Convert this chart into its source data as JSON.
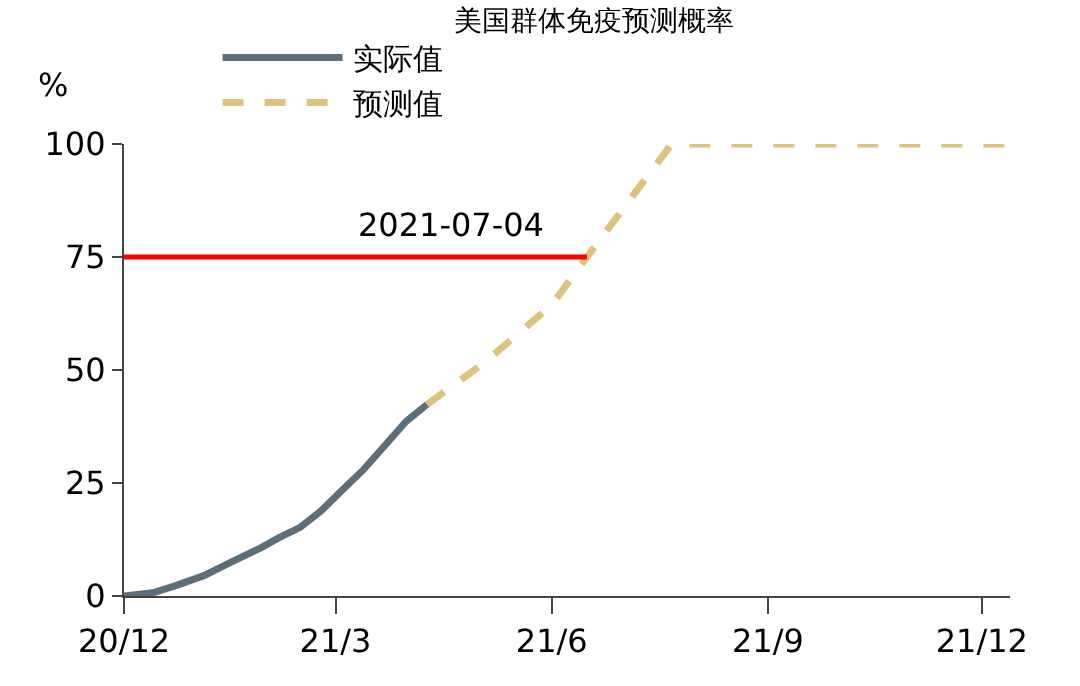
{
  "chart_data": {
    "type": "line",
    "title": "美国群体免疫预测概率",
    "ylabel": "%",
    "legend": "top",
    "xlim": [
      "2020-12-01",
      "2021-12-13"
    ],
    "xticks": [
      {
        "value": "2020-12-01",
        "label": "20/12"
      },
      {
        "value": "2021-03-01",
        "label": "21/3"
      },
      {
        "value": "2021-06-01",
        "label": "21/6"
      },
      {
        "value": "2021-09-01",
        "label": "21/9"
      },
      {
        "value": "2021-12-01",
        "label": "21/12"
      }
    ],
    "ylim": [
      0,
      100
    ],
    "yticks": [
      0,
      25,
      50,
      75,
      100
    ],
    "series": [
      {
        "name": "实际值",
        "color": "#5b6e7a",
        "line_style": "solid",
        "x": [
          "2020-12-01",
          "2020-12-14",
          "2020-12-23",
          "2021-01-04",
          "2021-01-16",
          "2021-01-28",
          "2021-02-05",
          "2021-02-14",
          "2021-02-23",
          "2021-03-04",
          "2021-03-13",
          "2021-03-22",
          "2021-03-31",
          "2021-04-09"
        ],
        "values": [
          0,
          0.8,
          2.3,
          4.5,
          7.6,
          10.6,
          12.9,
          15.2,
          18.9,
          23.5,
          28,
          33.3,
          38.6,
          42.4
        ]
      },
      {
        "name": "预测值",
        "color": "#e0c27f",
        "line_style": "dashed",
        "x": [
          "2021-04-09",
          "2021-05-03",
          "2021-06-01",
          "2021-06-16",
          "2021-07-22",
          "2021-12-13"
        ],
        "values": [
          42.4,
          51.5,
          64.4,
          75,
          100,
          100
        ]
      },
      {
        "color": "#ff0000",
        "line_style": "solid",
        "x": [
          "2020-12-01",
          "2021-06-16"
        ],
        "values": [
          75,
          75
        ]
      }
    ],
    "annotations": [
      "2021-07-04"
    ]
  }
}
